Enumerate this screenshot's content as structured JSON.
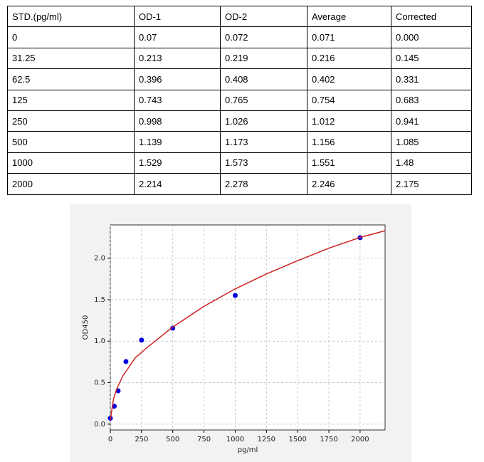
{
  "table": {
    "header": [
      "STD.(pg/ml)",
      "OD-1",
      "OD-2",
      "Average",
      "Corrected"
    ],
    "rows": [
      [
        "0",
        "0.07",
        "0.072",
        "0.071",
        "0.000"
      ],
      [
        "31.25",
        "0.213",
        "0.219",
        "0.216",
        "0.145"
      ],
      [
        "62.5",
        "0.396",
        "0.408",
        "0.402",
        "0.331"
      ],
      [
        "125",
        "0.743",
        "0.765",
        "0.754",
        "0.683"
      ],
      [
        "250",
        "0.998",
        "1.026",
        "1.012",
        "0.941"
      ],
      [
        "500",
        "1.139",
        "1.173",
        "1.156",
        "1.085"
      ],
      [
        "1000",
        "1.529",
        "1.573",
        "1.551",
        "1.48"
      ],
      [
        "2000",
        "2.214",
        "2.278",
        "2.246",
        "2.175"
      ]
    ]
  },
  "chart_data": {
    "type": "scatter",
    "x_label": "pg/ml",
    "y_label": "OD450",
    "series": [
      {
        "color": "#0000dd",
        "x": [
          0,
          31.25,
          62.5,
          125,
          250,
          500,
          1000,
          2000
        ],
        "values": [
          0.071,
          0.216,
          0.402,
          0.754,
          1.012,
          1.156,
          1.551,
          2.246
        ]
      },
      {
        "color": "#cc2222",
        "line": true,
        "x": [
          0,
          25,
          50,
          100,
          200,
          300,
          500,
          750,
          1000,
          1250,
          1500,
          1750,
          2000,
          2200
        ],
        "values": [
          0.05,
          0.3,
          0.42,
          0.58,
          0.8,
          0.93,
          1.17,
          1.42,
          1.63,
          1.81,
          1.97,
          2.12,
          2.25,
          2.33
        ]
      }
    ],
    "xlim": [
      0,
      2200
    ],
    "ylim": [
      -0.07,
      2.4
    ],
    "xticks": [
      0,
      250,
      500,
      750,
      1000,
      1250,
      1500,
      1750,
      2000
    ],
    "yticks": [
      {
        "value": 0,
        "label": "0.0"
      },
      0.5,
      {
        "value": 1,
        "label": "1.0"
      },
      1.5,
      {
        "value": 2,
        "label": "2.0"
      }
    ],
    "grid": true
  }
}
